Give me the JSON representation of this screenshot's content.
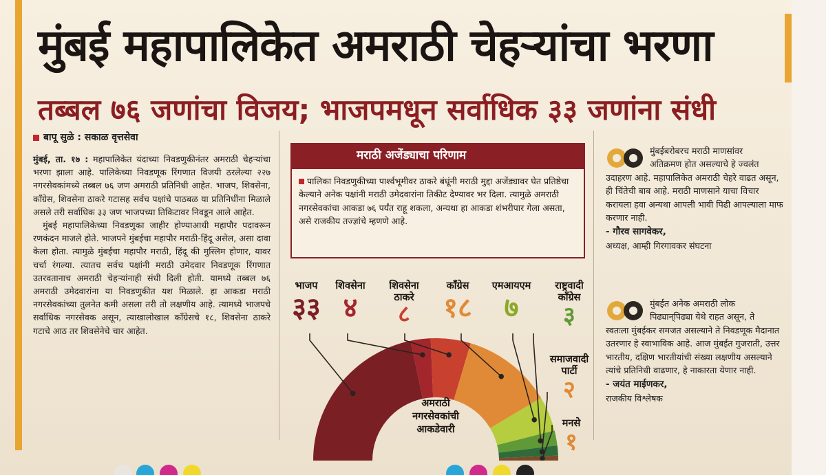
{
  "headline": "मुंबई महापालिकेत अमराठी चेहऱ्यांचा भरणा",
  "subhead": "तब्बल ७६ जणांचा विजय; भाजपमधून सर्वाधिक ३३ जणांना संधी",
  "byline": "बापू सुळे : सकाळ वृत्तसेवा",
  "article": {
    "lead": "मुंबई, ता. १७ :",
    "p1": "महापालिकेत यंदाच्या निवडणुकीनंतर अमराठी चेहऱ्यांचा भरणा झाला आहे. पालिकेच्या निवडणूक रिंगणात विजयी ठरलेल्या २२७ नगरसेवकांमध्ये तब्बल ७६ जण अमराठी प्रतिनिधी आहेत. भाजप, शिवसेना, काँग्रेस, शिवसेना ठाकरे गटासह सर्वच पक्षांचे पाठबळ या प्रतिनिधींना मिळाले असले तरी सर्वाधिक ३३ जण भाजपच्या तिकिटावर निवडून आले आहेत.",
    "p2": "मुंबई महापालिकेच्या निवडणुका जाहीर होण्याआधी महापौर पदावरून रणकंदन माजले होते. भाजपने मुंबईचा महापौर मराठी-हिंदू असेल, असा दावा केला होता. त्यामुळे मुंबईचा महापौर मराठी, हिंदू की मुस्लिम होणार, यावर चर्चा रंगल्या. त्यातच सर्वच पक्षांनी मराठी उमेदवार निवडणूक रिंगणात उतरवतानाच अमराठी चेहऱ्यांनाही संधी दिली होती. यामध्ये तब्बल ७६ अमराठी उमेदवारांना या निवडणुकीत यश मिळाले. हा आकडा मराठी नगरसेवकांच्या तुलनेत कमी असला तरी तो लक्षणीय आहे. त्यामध्ये भाजपचे सर्वाधिक नगरसेवक असून, त्याखालोखाल काँग्रेसचे १८, शिवसेना ठाकरे गटाचे आठ तर शिवसेनेचे चार आहेत."
  },
  "box": {
    "title": "मराठी अजेंड्याचा परिणाम",
    "text": "पालिका निवडणुकीच्या पार्श्वभूमीवर ठाकरे बंधूंनी मराठी मुद्दा अजेंड्यावर घेत प्रतिष्ठेचा केल्याने अनेक पक्षांनी मराठी उमेदवारांना तिकीट देण्यावर भर दिला. त्यामुळे अमराठी नगरसेवकांचा आकडा ७६ पर्यंत राहू शकला, अन्यथा हा आकडा शंभरीपार गेला असता, असे राजकीय तज्ज्ञांचे म्हणणे आहे."
  },
  "chart_data": {
    "type": "pie",
    "title": "अमराठी नगरसेवकांची आकडेवारी",
    "title_lines": [
      "अमराठी",
      "नगरसेवकांची",
      "आकडेवारी"
    ],
    "slices": [
      {
        "label": "भाजप",
        "value": 33,
        "value_label": "३३",
        "color": "#7a1f24"
      },
      {
        "label": "शिवसेना",
        "value": 4,
        "value_label": "४",
        "color": "#a3262c"
      },
      {
        "label": "शिवसेना ठाकरे",
        "value": 8,
        "value_label": "८",
        "color": "#c8412f"
      },
      {
        "label": "काँग्रेस",
        "value": 18,
        "value_label": "१८",
        "color": "#e08a38"
      },
      {
        "label": "एमआयएम",
        "value": 7,
        "value_label": "७",
        "color": "#b5cd3e"
      },
      {
        "label": "राष्ट्रवादी काँग्रेस",
        "value": 3,
        "value_label": "३",
        "color": "#5f9a36"
      },
      {
        "label": "समाजवादी पार्टी",
        "value": 2,
        "value_label": "२",
        "color": "#2f6a3a"
      },
      {
        "label": "मनसे",
        "value": 1,
        "value_label": "१",
        "color": "#7d4a2a"
      }
    ]
  },
  "party_labels": {
    "bjp": {
      "name": "भाजप",
      "num": "३३"
    },
    "ss": {
      "name": "शिवसेना",
      "num": "४"
    },
    "sst1": "शिवसेना",
    "sst2": "ठाकरे",
    "sst_num": "८",
    "cong": {
      "name": "काँग्रेस",
      "num": "१८"
    },
    "mim": {
      "name": "एमआयएम",
      "num": "७"
    },
    "ncp1": "राष्ट्रवादी",
    "ncp2": "काँग्रेस",
    "ncp_num": "३",
    "sp1": "समाजवादी",
    "sp2": "पार्टी",
    "sp_num": "२",
    "mns": {
      "name": "मनसे",
      "num": "१"
    }
  },
  "quotes": [
    {
      "line1": "मुंबईबरोबरच मराठी माणसांवर",
      "line2": "अतिक्रमण होत असल्याचे हे ज्वलंत",
      "rest": "उदाहरण आहे. महापालिकेत अमराठी चेहरे वाढत असून, ही चिंतेची बाब आहे. मराठी माणसाने याचा विचार करायला हवा अन्यथा आपली भावी पिढी आपल्याला माफ करणार नाही.",
      "author": "- गौरव सागवेकर,",
      "role": "अध्यक्ष, आम्ही गिरगावकर संघटना"
    },
    {
      "line1": "मुंबईत अनेक अमराठी लोक",
      "line2": "पिढ्यान्‌पिढ्या येथे राहत असून, ते",
      "rest": "स्वतःला मुंबईकर समजत असल्याने ते निवडणूक मैदानात उतरणार हे स्वाभाविक आहे. आज मुंबईत गुजराती, उत्तर भारतीय, दक्षिण भारतीयांची संख्या लक्षणीय असल्याने त्यांचे प्रतिनिधी वाढणार, हे नाकारता येणार नाही.",
      "author": "- जयंत माईणकर,",
      "role": "राजकीय विश्लेषक"
    }
  ],
  "colors": {
    "accent": "#8a1f25",
    "highlight": "#e8a531",
    "quote_gold": "#e2a93a",
    "quote_dark": "#2b2620"
  }
}
